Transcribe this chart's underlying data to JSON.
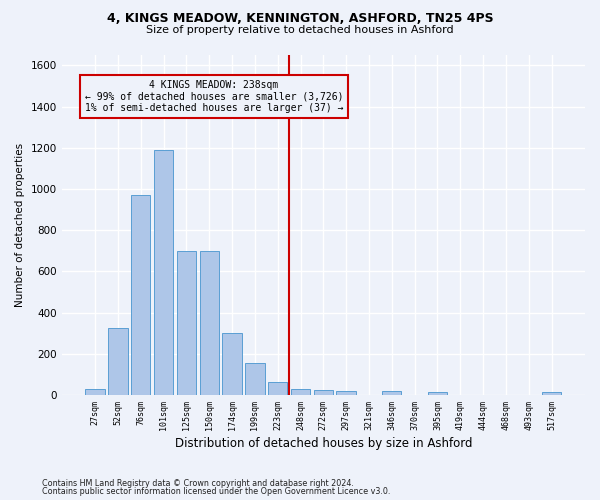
{
  "title1": "4, KINGS MEADOW, KENNINGTON, ASHFORD, TN25 4PS",
  "title2": "Size of property relative to detached houses in Ashford",
  "xlabel": "Distribution of detached houses by size in Ashford",
  "ylabel": "Number of detached properties",
  "footnote1": "Contains HM Land Registry data © Crown copyright and database right 2024.",
  "footnote2": "Contains public sector information licensed under the Open Government Licence v3.0.",
  "bins": [
    "27sqm",
    "52sqm",
    "76sqm",
    "101sqm",
    "125sqm",
    "150sqm",
    "174sqm",
    "199sqm",
    "223sqm",
    "248sqm",
    "272sqm",
    "297sqm",
    "321sqm",
    "346sqm",
    "370sqm",
    "395sqm",
    "419sqm",
    "444sqm",
    "468sqm",
    "493sqm",
    "517sqm"
  ],
  "values": [
    30,
    325,
    970,
    1190,
    700,
    700,
    300,
    155,
    65,
    30,
    25,
    20,
    0,
    20,
    0,
    15,
    0,
    0,
    0,
    0,
    15
  ],
  "bar_color": "#aec6e8",
  "bar_edge_color": "#5a9fd4",
  "vline_color": "#cc0000",
  "vline_bin_index": 9,
  "ylim": [
    0,
    1650
  ],
  "yticks": [
    0,
    200,
    400,
    600,
    800,
    1000,
    1200,
    1400,
    1600
  ],
  "ann_line1": "4 KINGS MEADOW: 238sqm",
  "ann_line2": "← 99% of detached houses are smaller (3,726)",
  "ann_line3": "1% of semi-detached houses are larger (37) →",
  "annotation_box_color": "#cc0000",
  "background_color": "#eef2fa",
  "grid_color": "#ffffff",
  "bar_width": 0.85
}
